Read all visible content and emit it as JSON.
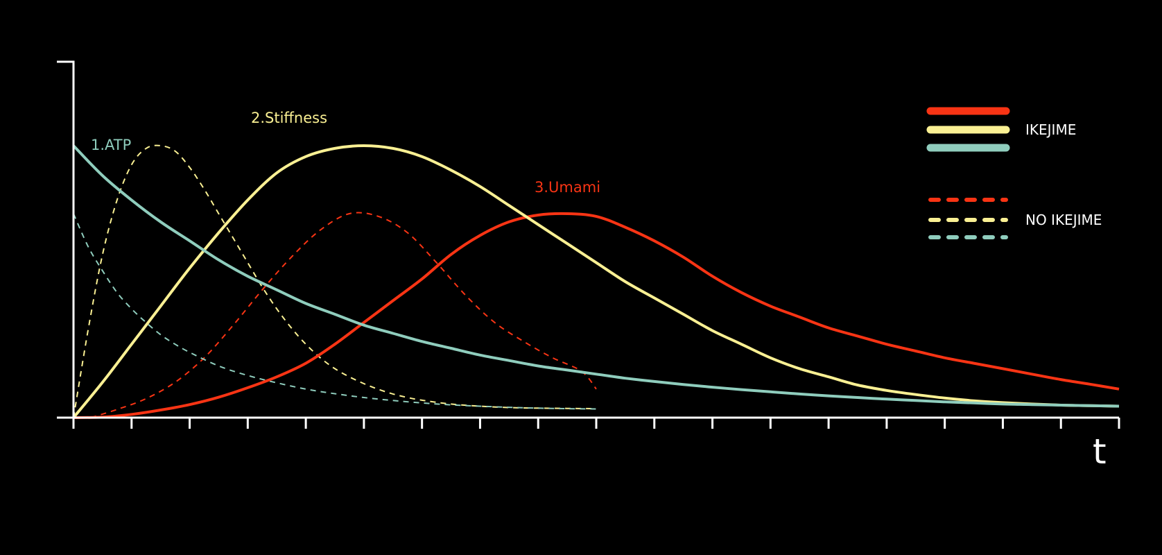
{
  "chart_data": {
    "type": "line",
    "title": "",
    "xlabel": "t",
    "ylabel": "",
    "x_ticks": 19,
    "grid": false,
    "legend_position": "top-right",
    "legend": [
      {
        "label": "IKEJIME",
        "style": "solid",
        "colors": [
          "#f83414",
          "#faf093",
          "#8fcdbd"
        ]
      },
      {
        "label": "NO IKEJIME",
        "style": "dashed",
        "colors": [
          "#f83414",
          "#faf093",
          "#8fcdbd"
        ]
      }
    ],
    "curve_labels": [
      {
        "text": "1.ATP",
        "color": "#8fcdbd",
        "series": "atp_ikejime"
      },
      {
        "text": "2.Stiffness",
        "color": "#faf093",
        "series": "stiffness_ikejime"
      },
      {
        "text": "3.Umami",
        "color": "#f83414",
        "series": "umami_ikejime"
      }
    ],
    "series": [
      {
        "id": "umami_ikejime",
        "color": "#f83414",
        "style": "solid",
        "x": [
          0,
          0.5,
          1,
          1.5,
          2,
          2.5,
          3,
          3.5,
          4,
          4.5,
          5,
          5.5,
          6,
          6.5,
          7,
          7.5,
          8,
          8.5,
          9,
          9.5,
          10,
          10.5,
          11,
          11.5,
          12,
          12.5,
          13,
          13.5,
          14,
          14.5,
          15,
          15.5,
          16,
          16.5,
          17,
          17.5,
          18
        ],
        "y": [
          0,
          0.002,
          0.012,
          0.028,
          0.048,
          0.075,
          0.11,
          0.15,
          0.2,
          0.27,
          0.35,
          0.43,
          0.51,
          0.6,
          0.67,
          0.72,
          0.745,
          0.75,
          0.74,
          0.7,
          0.65,
          0.59,
          0.52,
          0.46,
          0.41,
          0.37,
          0.33,
          0.3,
          0.27,
          0.245,
          0.22,
          0.2,
          0.18,
          0.16,
          0.14,
          0.123,
          0.105
        ]
      },
      {
        "id": "stiffness_ikejime",
        "color": "#faf093",
        "style": "solid",
        "x": [
          0,
          0.5,
          1,
          1.5,
          2,
          2.5,
          3,
          3.5,
          4,
          4.5,
          5,
          5.5,
          6,
          6.5,
          7,
          7.5,
          8,
          8.5,
          9,
          9.5,
          10,
          10.5,
          11,
          11.5,
          12,
          12.5,
          13,
          13.5,
          14,
          14.5,
          15,
          15.5,
          16,
          16.5,
          17,
          17.5,
          18
        ],
        "y": [
          0,
          0.13,
          0.27,
          0.41,
          0.55,
          0.68,
          0.8,
          0.9,
          0.96,
          0.99,
          1.0,
          0.99,
          0.96,
          0.91,
          0.85,
          0.78,
          0.71,
          0.64,
          0.57,
          0.5,
          0.44,
          0.38,
          0.32,
          0.27,
          0.22,
          0.18,
          0.15,
          0.12,
          0.1,
          0.085,
          0.072,
          0.062,
          0.055,
          0.05,
          0.046,
          0.044,
          0.042
        ]
      },
      {
        "id": "atp_ikejime",
        "color": "#8fcdbd",
        "style": "solid",
        "x": [
          0,
          0.5,
          1,
          1.5,
          2,
          2.5,
          3,
          3.5,
          4,
          4.5,
          5,
          5.5,
          6,
          6.5,
          7,
          7.5,
          8,
          8.5,
          9,
          9.5,
          10,
          10.5,
          11,
          11.5,
          12,
          12.5,
          13,
          13.5,
          14,
          14.5,
          15,
          15.5,
          16,
          16.5,
          17,
          17.5,
          18
        ],
        "y": [
          1.0,
          0.89,
          0.8,
          0.72,
          0.65,
          0.58,
          0.52,
          0.47,
          0.42,
          0.38,
          0.34,
          0.31,
          0.28,
          0.255,
          0.23,
          0.21,
          0.19,
          0.175,
          0.16,
          0.145,
          0.133,
          0.122,
          0.112,
          0.103,
          0.095,
          0.087,
          0.08,
          0.074,
          0.068,
          0.063,
          0.058,
          0.054,
          0.05,
          0.048,
          0.046,
          0.044,
          0.042
        ]
      },
      {
        "id": "umami_no_ikejime",
        "color": "#f83414",
        "style": "dashed",
        "x": [
          0.3,
          0.75,
          1.25,
          1.75,
          2.25,
          2.75,
          3.25,
          3.75,
          4.25,
          4.75,
          5.25,
          5.75,
          6.25,
          6.75,
          7.25,
          7.75,
          8.25,
          8.75,
          9.0
        ],
        "y": [
          0,
          0.03,
          0.07,
          0.13,
          0.22,
          0.34,
          0.47,
          0.59,
          0.69,
          0.75,
          0.74,
          0.68,
          0.57,
          0.45,
          0.35,
          0.28,
          0.22,
          0.17,
          0.105
        ]
      },
      {
        "id": "stiffness_no_ikejime",
        "color": "#faf093",
        "style": "dashed",
        "x": [
          0,
          0.25,
          0.5,
          0.75,
          1,
          1.25,
          1.5,
          1.75,
          2,
          2.25,
          2.5,
          2.75,
          3,
          3.25,
          3.5,
          3.75,
          4,
          4.25,
          4.5,
          4.75,
          5,
          5.25,
          5.5,
          5.75,
          6,
          6.5,
          7,
          7.5,
          8,
          8.5,
          9.0
        ],
        "y": [
          0,
          0.32,
          0.6,
          0.8,
          0.93,
          0.99,
          1.0,
          0.98,
          0.92,
          0.84,
          0.75,
          0.66,
          0.57,
          0.48,
          0.4,
          0.33,
          0.27,
          0.22,
          0.18,
          0.15,
          0.125,
          0.104,
          0.087,
          0.074,
          0.064,
          0.05,
          0.042,
          0.037,
          0.035,
          0.034,
          0.033
        ]
      },
      {
        "id": "atp_no_ikejime",
        "color": "#8fcdbd",
        "style": "dashed",
        "x": [
          0,
          0.25,
          0.5,
          0.75,
          1,
          1.25,
          1.5,
          1.75,
          2,
          2.5,
          3,
          3.5,
          4,
          4.5,
          5,
          5.5,
          6,
          6.5,
          7,
          7.5,
          8,
          8.5,
          9.0
        ],
        "y": [
          0.75,
          0.63,
          0.54,
          0.46,
          0.4,
          0.35,
          0.305,
          0.27,
          0.24,
          0.19,
          0.155,
          0.128,
          0.105,
          0.088,
          0.074,
          0.063,
          0.054,
          0.047,
          0.042,
          0.038,
          0.035,
          0.033,
          0.032
        ]
      }
    ]
  }
}
